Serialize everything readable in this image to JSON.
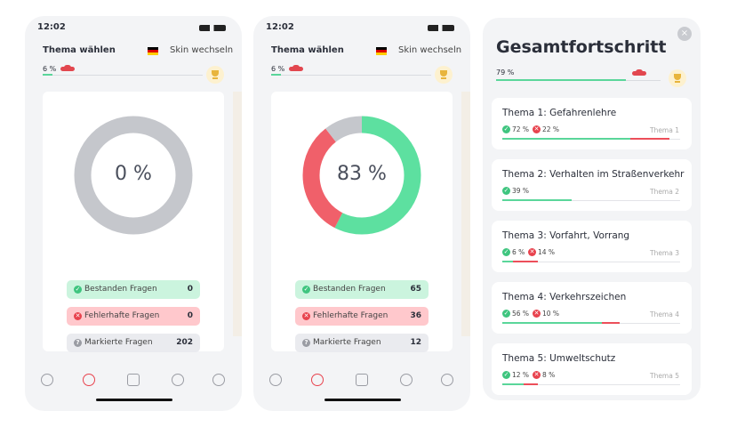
{
  "screens": [
    {
      "status_time": "12:02",
      "topic_label": "Thema wählen",
      "skin_label": "Skin wechseln",
      "progress": 6,
      "progress_label": "6 %",
      "donut_label": "0 %",
      "stats": [
        {
          "label": "Bestanden Fragen",
          "count": 0
        },
        {
          "label": "Fehlerhafte Fragen",
          "count": 0
        },
        {
          "label": "Markierte Fragen",
          "count": 202
        }
      ]
    },
    {
      "status_time": "12:02",
      "topic_label": "Thema wählen",
      "skin_label": "Skin wechseln",
      "progress": 6,
      "progress_label": "6 %",
      "donut_label": "83 %",
      "stats": [
        {
          "label": "Bestanden Fragen",
          "count": 65
        },
        {
          "label": "Fehlerhafte Fragen",
          "count": 36
        },
        {
          "label": "Markierte Fragen",
          "count": 12
        }
      ]
    }
  ],
  "overview": {
    "title": "Gesamtfortschritt",
    "progress": 79,
    "progress_label": "79 %",
    "topics": [
      {
        "title": "Thema 1: Gefahrenlehre",
        "correct": 72,
        "correct_label": "72 %",
        "wrong": 22,
        "wrong_label": "22 %",
        "tag": "Thema 1"
      },
      {
        "title": "Thema 2: Verhalten im Straßenverkehr",
        "correct": 39,
        "correct_label": "39 %",
        "tag": "Thema 2"
      },
      {
        "title": "Thema 3: Vorfahrt, Vorrang",
        "correct": 6,
        "correct_label": "6 %",
        "wrong": 14,
        "wrong_label": "14 %",
        "tag": "Thema 3"
      },
      {
        "title": "Thema 4: Verkehrszeichen",
        "correct": 56,
        "correct_label": "56 %",
        "wrong": 10,
        "wrong_label": "10 %",
        "tag": "Thema 4"
      },
      {
        "title": "Thema 5: Umweltschutz",
        "correct": 12,
        "correct_label": "12 %",
        "wrong": 8,
        "wrong_label": "8 %",
        "tag": "Thema 5"
      }
    ]
  }
}
